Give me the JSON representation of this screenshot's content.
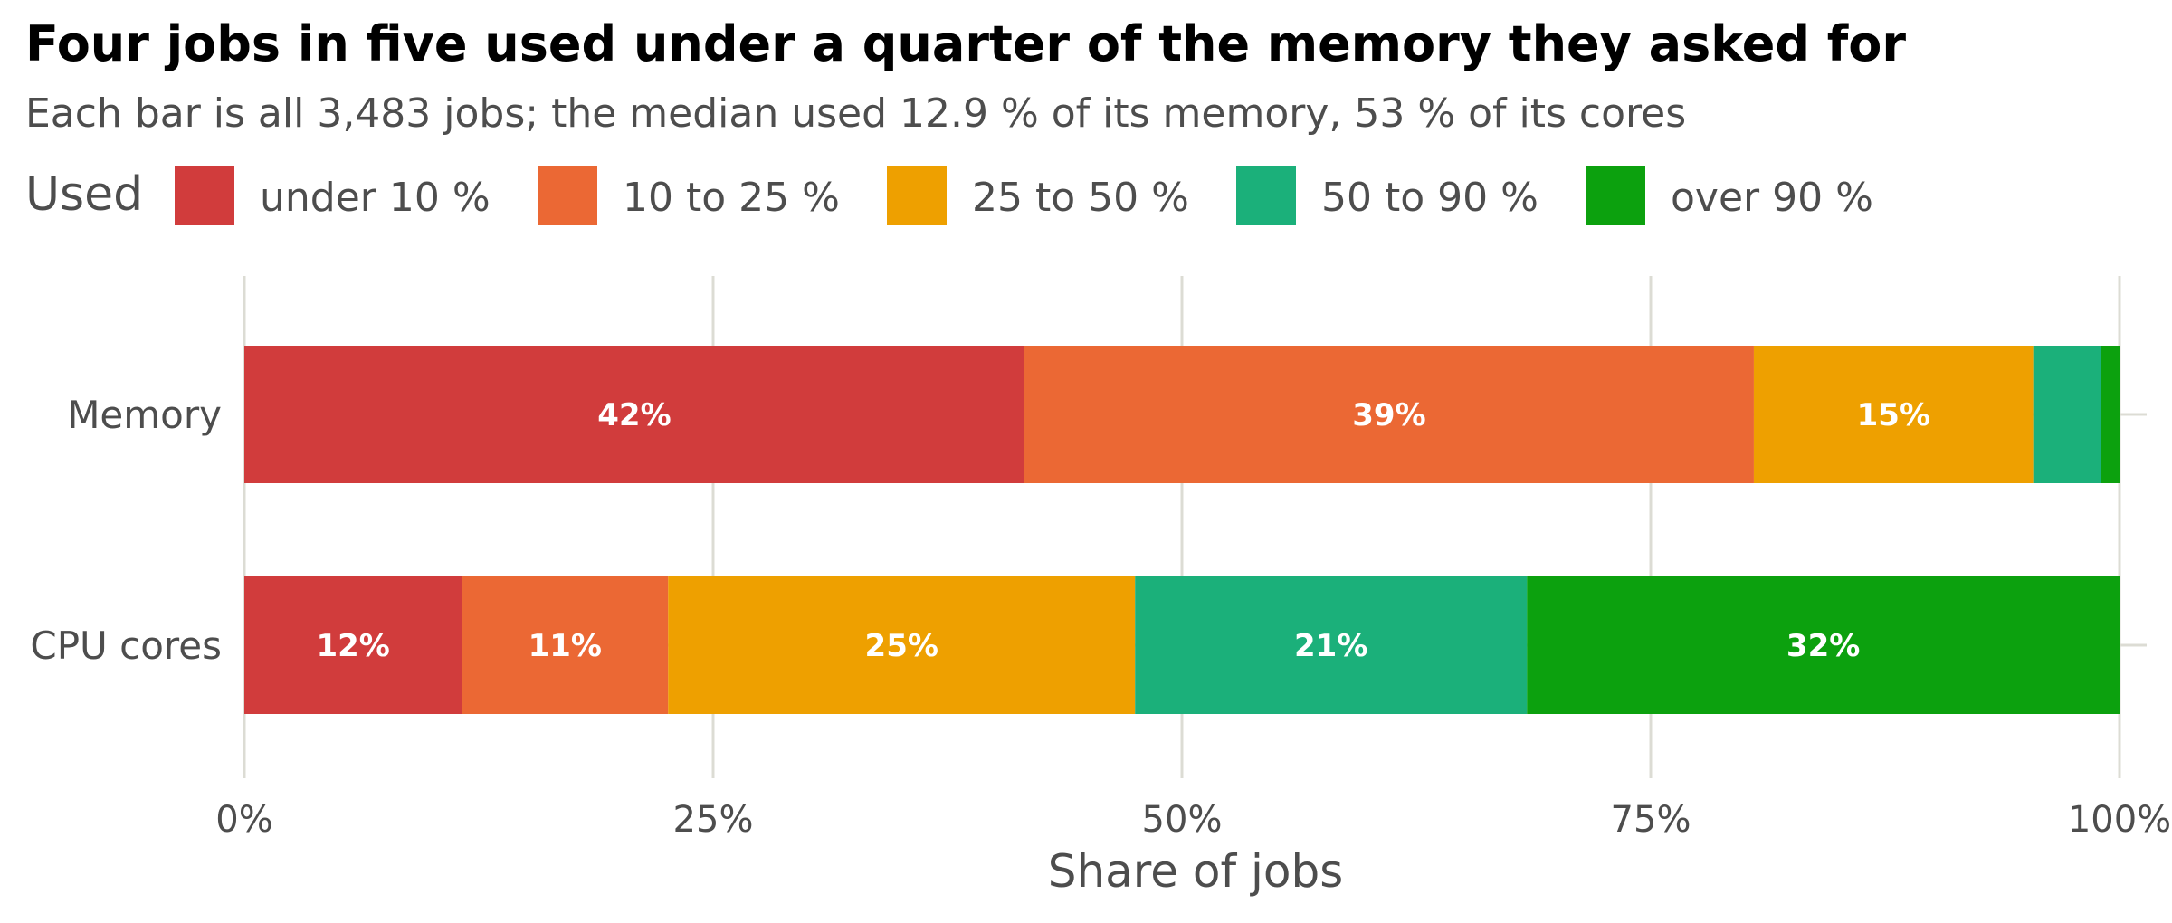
{
  "chart_data": {
    "type": "bar",
    "orientation": "horizontal",
    "stacked": true,
    "title": "Four jobs in five used under a quarter of the memory they asked for",
    "subtitle": "Each bar is all 3,483 jobs; the median used 12.9 % of its memory, 53 % of its cores",
    "xlabel": "Share of jobs",
    "ylabel": "",
    "xlim": [
      0,
      100
    ],
    "x_ticks": [
      0,
      25,
      50,
      75,
      100
    ],
    "x_tick_labels": [
      "0%",
      "25%",
      "50%",
      "75%",
      "100%"
    ],
    "grid": true,
    "legend": {
      "title": "Used",
      "position": "top-left"
    },
    "categories": [
      "Memory",
      "CPU cores"
    ],
    "series": [
      {
        "name": "under 10 %",
        "color": "#d13c3c",
        "values": [
          41.6,
          11.6
        ],
        "labels": [
          "42%",
          "12%"
        ]
      },
      {
        "name": "10 to 25 %",
        "color": "#eb6834",
        "values": [
          38.9,
          11.0
        ],
        "labels": [
          "39%",
          "11%"
        ]
      },
      {
        "name": "25 to 50 %",
        "color": "#eea000",
        "values": [
          14.9,
          24.9
        ],
        "labels": [
          "15%",
          "25%"
        ]
      },
      {
        "name": "50 to 90 %",
        "color": "#1bb07a",
        "values": [
          3.6,
          20.9
        ],
        "labels": [
          "",
          "21%"
        ]
      },
      {
        "name": "over 90 %",
        "color": "#0ca10e",
        "values": [
          1.0,
          31.6
        ],
        "labels": [
          "",
          "32%"
        ]
      }
    ]
  }
}
